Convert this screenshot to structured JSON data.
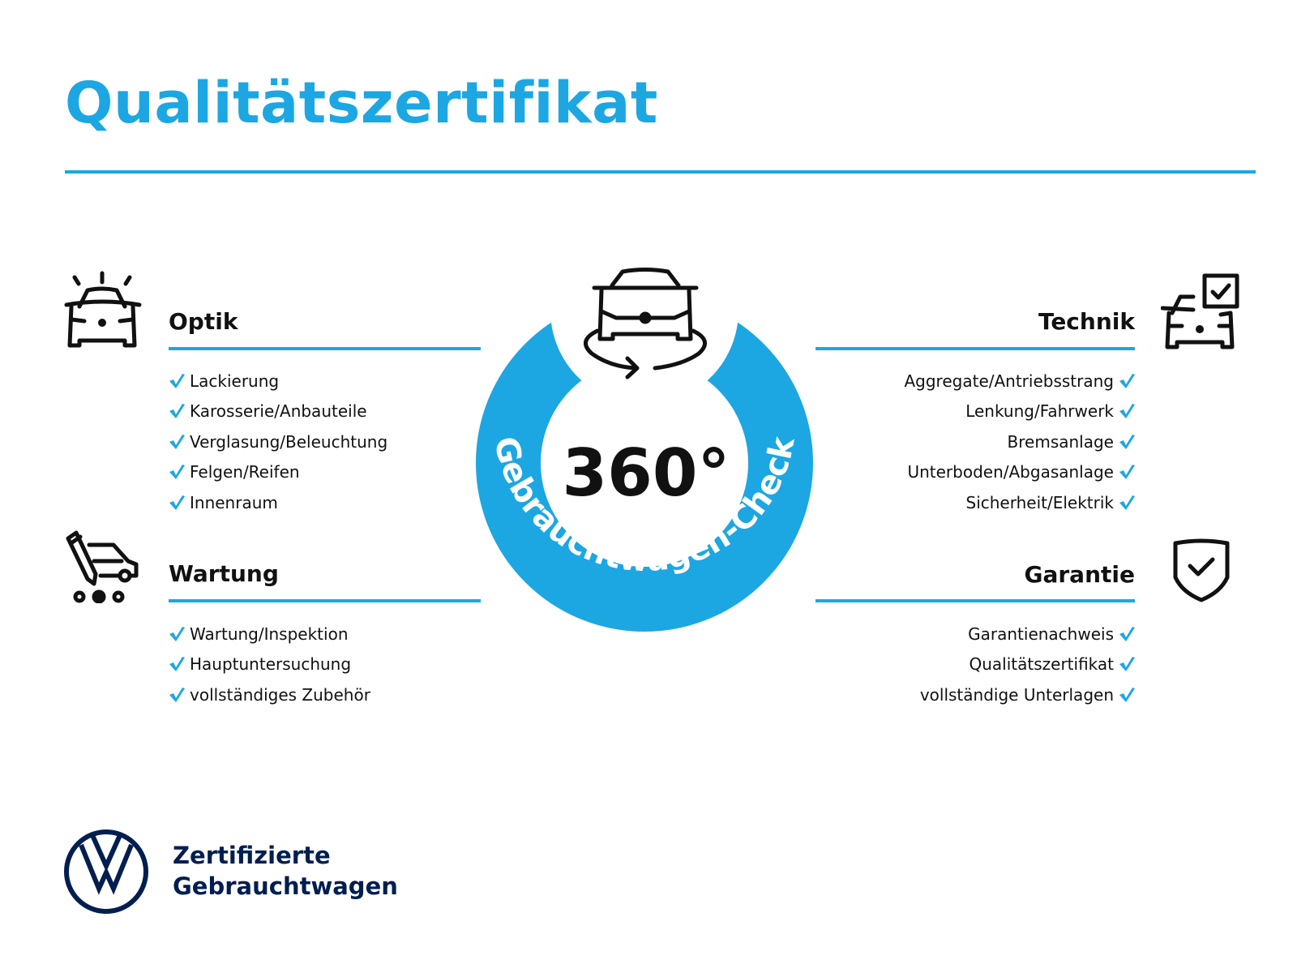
{
  "title": "Qualitätszertifikat",
  "colors": {
    "accent": "#1ca7e3",
    "text": "#111111",
    "brand_navy": "#001e50"
  },
  "badge": {
    "center_text": "360°",
    "ring_text": "Gebrauchtwagen-Check",
    "icon": "car-rotate-icon"
  },
  "sections": {
    "optik": {
      "heading": "Optik",
      "icon": "car-lights-icon",
      "items": [
        "Lackierung",
        "Karosserie/Anbauteile",
        "Verglasung/Beleuchtung",
        "Felgen/Reifen",
        "Innenraum"
      ]
    },
    "wartung": {
      "heading": "Wartung",
      "icon": "car-service-icon",
      "items": [
        "Wartung/Inspektion",
        "Hauptuntersuchung",
        "vollständiges Zubehör"
      ]
    },
    "technik": {
      "heading": "Technik",
      "icon": "car-checkbox-icon",
      "items": [
        "Aggregate/Antriebsstrang",
        "Lenkung/Fahrwerk",
        "Bremsanlage",
        "Unterboden/Abgasanlage",
        "Sicherheit/Elektrik"
      ]
    },
    "garantie": {
      "heading": "Garantie",
      "icon": "shield-check-icon",
      "items": [
        "Garantienachweis",
        "Qualitätszertifikat",
        "vollständige Unterlagen"
      ]
    }
  },
  "footer": {
    "line1": "Zertifizierte",
    "line2": "Gebrauchtwagen",
    "logo": "vw-logo"
  }
}
